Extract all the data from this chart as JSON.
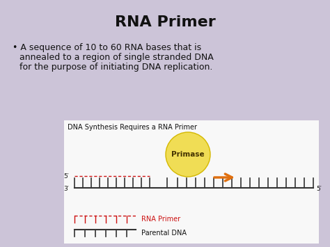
{
  "bg_color": "#ccc4d8",
  "diagram_bg": "#f8f8f8",
  "title": "RNA Primer",
  "bullet_line1": "A sequence of 10 to 60 RNA bases that is",
  "bullet_line2": "annealed to a region of single stranded DNA",
  "bullet_line3": "for the purpose of initiating DNA replication.",
  "diagram_title": "DNA Synthesis Requires a RNA Primer",
  "primase_label": "Primase",
  "primase_color": "#f0dd55",
  "primase_edge": "#d4b800",
  "arrow_color": "#e07010",
  "dna_line_color": "#333333",
  "rna_primer_color": "#cc1111",
  "strand5_label_top": "5′",
  "strand3_label": "3′",
  "strand5_label_right": "5′",
  "legend_rna": "RNA Primer",
  "legend_dna": "Parental DNA",
  "title_fontsize": 16,
  "bullet_fontsize": 9,
  "diagram_title_fontsize": 7,
  "label_fontsize": 6.5,
  "legend_fontsize": 7
}
